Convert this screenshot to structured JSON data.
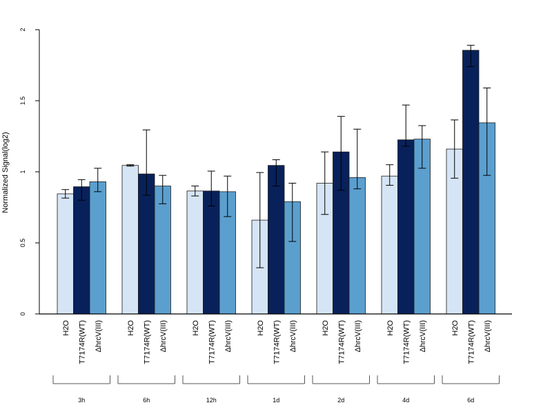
{
  "chart_data": {
    "type": "bar",
    "title": "",
    "xlabel": "",
    "ylabel": "Normalized Signal(log2)",
    "ylim": [
      0,
      2
    ],
    "yticks": [
      "0",
      "0.5",
      "1",
      "1.5",
      "2"
    ],
    "grid": false,
    "legend": "none",
    "series_labels": [
      "H2O",
      "T7174R(WT)",
      "ΔhrcV(III)"
    ],
    "series_colors": [
      "#d6e5f5",
      "#08215a",
      "#5b9fcf"
    ],
    "groups": [
      {
        "label": "3h",
        "values": [
          0.845,
          0.895,
          0.93
        ],
        "err_low": [
          0.815,
          0.8,
          0.86
        ],
        "err_high": [
          0.875,
          0.945,
          1.025
        ]
      },
      {
        "label": "6h",
        "values": [
          1.045,
          0.985,
          0.9
        ],
        "err_low": [
          1.04,
          0.835,
          0.775
        ],
        "err_high": [
          1.05,
          1.295,
          0.975
        ]
      },
      {
        "label": "12h",
        "values": [
          0.865,
          0.865,
          0.86
        ],
        "err_low": [
          0.83,
          0.76,
          0.685
        ],
        "err_high": [
          0.9,
          1.005,
          0.97
        ]
      },
      {
        "label": "1d",
        "values": [
          0.66,
          1.045,
          0.79
        ],
        "err_low": [
          0.325,
          0.9,
          0.51
        ],
        "err_high": [
          0.995,
          1.085,
          0.92
        ]
      },
      {
        "label": "2d",
        "values": [
          0.92,
          1.14,
          0.96
        ],
        "err_low": [
          0.7,
          0.87,
          0.88
        ],
        "err_high": [
          1.14,
          1.39,
          1.3
        ]
      },
      {
        "label": "4d",
        "values": [
          0.97,
          1.225,
          1.23
        ],
        "err_low": [
          0.905,
          1.18,
          1.025
        ],
        "err_high": [
          1.05,
          1.47,
          1.325
        ]
      },
      {
        "label": "6d",
        "values": [
          1.16,
          1.855,
          1.345
        ],
        "err_low": [
          0.955,
          1.74,
          0.975
        ],
        "err_high": [
          1.365,
          1.89,
          1.59
        ]
      }
    ]
  }
}
